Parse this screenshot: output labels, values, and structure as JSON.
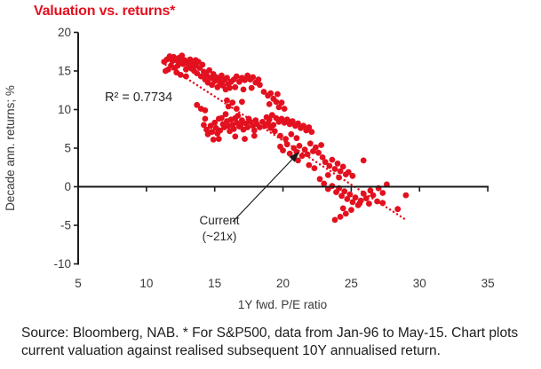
{
  "title": "Valuation vs. returns*",
  "accent_color": "#e3101f",
  "axis_color": "#1a1a1a",
  "source_note": "Source: Bloomberg, NAB. * For S&P500, data from Jan-96 to May-15. Chart plots current valuation against realised subsequent 10Y annualised return.",
  "chart_data": {
    "type": "scatter",
    "title": "Valuation vs. returns*",
    "xlabel": "1Y fwd. P/E ratio",
    "ylabel": "Decade ann. returns; %",
    "xlim": [
      5,
      35
    ],
    "ylim": [
      -10,
      20
    ],
    "x_ticks": [
      5,
      10,
      15,
      20,
      25,
      30,
      35
    ],
    "y_ticks": [
      20,
      15,
      10,
      5,
      0,
      -5,
      -10
    ],
    "grid": false,
    "point_color": "#e3101f",
    "r_squared_label": "R² = 0.7734",
    "annotation": {
      "line1": "Current",
      "line2": "(~21x)",
      "target": [
        21.2,
        4.6
      ]
    },
    "trend_line": {
      "from": [
        11.4,
        15.8
      ],
      "to": [
        29.1,
        -4.4
      ],
      "style": "dotted",
      "color": "#e3101f"
    },
    "points": [
      [
        11.3,
        16.2
      ],
      [
        11.5,
        16.5
      ],
      [
        11.7,
        16.9
      ],
      [
        11.9,
        16.3
      ],
      [
        12.0,
        16.8
      ],
      [
        12.2,
        16.4
      ],
      [
        12.4,
        16.7
      ],
      [
        12.6,
        17.0
      ],
      [
        12.5,
        16.1
      ],
      [
        12.3,
        15.7
      ],
      [
        12.1,
        15.4
      ],
      [
        11.8,
        15.7
      ],
      [
        11.6,
        15.2
      ],
      [
        12.7,
        15.9
      ],
      [
        12.8,
        16.4
      ],
      [
        13.0,
        16.1
      ],
      [
        13.2,
        16.5
      ],
      [
        13.4,
        16.0
      ],
      [
        13.1,
        15.6
      ],
      [
        12.9,
        15.2
      ],
      [
        13.3,
        15.3
      ],
      [
        13.6,
        15.7
      ],
      [
        13.8,
        16.2
      ],
      [
        13.6,
        16.4
      ],
      [
        13.5,
        15.0
      ],
      [
        13.7,
        14.7
      ],
      [
        13.9,
        15.4
      ],
      [
        14.1,
        15.8
      ],
      [
        12.2,
        14.8
      ],
      [
        12.5,
        14.5
      ],
      [
        12.9,
        14.3
      ],
      [
        11.4,
        15.0
      ],
      [
        14.0,
        14.3
      ],
      [
        14.2,
        14.9
      ],
      [
        14.4,
        14.5
      ],
      [
        14.6,
        15.1
      ],
      [
        14.3,
        13.9
      ],
      [
        14.5,
        13.5
      ],
      [
        14.7,
        14.1
      ],
      [
        14.9,
        14.6
      ],
      [
        15.1,
        14.2
      ],
      [
        15.0,
        13.7
      ],
      [
        14.8,
        13.2
      ],
      [
        15.2,
        12.9
      ],
      [
        15.4,
        13.4
      ],
      [
        15.3,
        14.0
      ],
      [
        15.5,
        14.4
      ],
      [
        15.7,
        13.8
      ],
      [
        15.6,
        13.1
      ],
      [
        15.8,
        12.6
      ],
      [
        16.0,
        13.3
      ],
      [
        16.1,
        12.8
      ],
      [
        15.9,
        14.1
      ],
      [
        16.2,
        13.6
      ],
      [
        16.4,
        13.9
      ],
      [
        16.6,
        14.3
      ],
      [
        16.8,
        13.6
      ],
      [
        17.0,
        14.1
      ],
      [
        17.2,
        13.8
      ],
      [
        17.4,
        14.4
      ],
      [
        17.6,
        13.9
      ],
      [
        17.8,
        14.2
      ],
      [
        18.0,
        13.5
      ],
      [
        18.2,
        13.9
      ],
      [
        18.3,
        13.2
      ],
      [
        16.5,
        12.9
      ],
      [
        17.1,
        12.6
      ],
      [
        17.7,
        12.8
      ],
      [
        18.6,
        12.3
      ],
      [
        18.9,
        11.8
      ],
      [
        19.1,
        12.1
      ],
      [
        19.3,
        11.4
      ],
      [
        19.5,
        11.0
      ],
      [
        19.0,
        10.7
      ],
      [
        19.7,
        10.3
      ],
      [
        19.9,
        10.9
      ],
      [
        20.1,
        10.1
      ],
      [
        19.6,
        12.0
      ],
      [
        13.7,
        10.6
      ],
      [
        14.0,
        10.1
      ],
      [
        16.0,
        10.4
      ],
      [
        16.3,
        10.9
      ],
      [
        16.6,
        10.1
      ],
      [
        15.9,
        11.2
      ],
      [
        17.0,
        11.0
      ],
      [
        14.3,
        9.9
      ],
      [
        14.2,
        8.0
      ],
      [
        14.3,
        8.8
      ],
      [
        14.4,
        7.4
      ],
      [
        14.5,
        6.8
      ],
      [
        14.7,
        7.9
      ],
      [
        14.8,
        7.1
      ],
      [
        15.0,
        8.3
      ],
      [
        15.1,
        7.6
      ],
      [
        15.3,
        8.8
      ],
      [
        15.2,
        6.9
      ],
      [
        15.4,
        7.3
      ],
      [
        15.6,
        8.1
      ],
      [
        15.5,
        8.9
      ],
      [
        15.7,
        7.7
      ],
      [
        15.9,
        8.5
      ],
      [
        16.0,
        7.9
      ],
      [
        16.2,
        8.7
      ],
      [
        16.1,
        7.2
      ],
      [
        16.3,
        8.0
      ],
      [
        16.5,
        8.9
      ],
      [
        16.4,
        7.5
      ],
      [
        16.6,
        8.3
      ],
      [
        16.8,
        7.8
      ],
      [
        17.0,
        8.6
      ],
      [
        16.9,
        8.0
      ],
      [
        17.1,
        7.4
      ],
      [
        17.3,
        8.2
      ],
      [
        17.5,
        8.8
      ],
      [
        17.4,
        7.7
      ],
      [
        17.6,
        8.4
      ],
      [
        17.8,
        7.9
      ],
      [
        18.0,
        8.6
      ],
      [
        17.9,
        7.3
      ],
      [
        18.1,
        8.1
      ],
      [
        18.3,
        7.7
      ],
      [
        18.5,
        8.4
      ],
      [
        18.7,
        7.9
      ],
      [
        18.9,
        8.2
      ],
      [
        19.1,
        7.6
      ],
      [
        19.3,
        8.0
      ],
      [
        15.8,
        9.4
      ],
      [
        16.7,
        9.2
      ],
      [
        16.5,
        6.5
      ],
      [
        17.2,
        6.2
      ],
      [
        17.9,
        6.6
      ],
      [
        15.3,
        6.2
      ],
      [
        14.9,
        6.1
      ],
      [
        18.8,
        9.0
      ],
      [
        19.0,
        8.7
      ],
      [
        19.2,
        9.3
      ],
      [
        19.5,
        8.9
      ],
      [
        19.7,
        8.4
      ],
      [
        19.9,
        8.8
      ],
      [
        20.1,
        8.3
      ],
      [
        20.3,
        8.7
      ],
      [
        20.5,
        8.1
      ],
      [
        20.7,
        8.5
      ],
      [
        20.9,
        7.9
      ],
      [
        21.1,
        8.2
      ],
      [
        21.3,
        7.6
      ],
      [
        21.5,
        7.9
      ],
      [
        21.7,
        7.3
      ],
      [
        21.9,
        7.7
      ],
      [
        22.1,
        7.1
      ],
      [
        19.4,
        7.2
      ],
      [
        19.8,
        6.6
      ],
      [
        20.2,
        6.2
      ],
      [
        20.6,
        6.8
      ],
      [
        21.0,
        6.3
      ],
      [
        19.8,
        5.2
      ],
      [
        20.0,
        4.7
      ],
      [
        20.3,
        5.5
      ],
      [
        20.5,
        4.3
      ],
      [
        20.8,
        5.0
      ],
      [
        21.0,
        4.5
      ],
      [
        21.2,
        5.3
      ],
      [
        21.4,
        4.0
      ],
      [
        21.6,
        4.8
      ],
      [
        21.8,
        4.2
      ],
      [
        22.0,
        5.6
      ],
      [
        22.2,
        4.6
      ],
      [
        22.4,
        5.1
      ],
      [
        22.6,
        4.4
      ],
      [
        22.8,
        5.4
      ],
      [
        21.1,
        3.4
      ],
      [
        21.9,
        2.8
      ],
      [
        22.3,
        2.4
      ],
      [
        22.9,
        3.8
      ],
      [
        23.1,
        3.2
      ],
      [
        23.4,
        2.7
      ],
      [
        23.6,
        3.5
      ],
      [
        23.8,
        2.3
      ],
      [
        24.0,
        3.0
      ],
      [
        24.2,
        2.0
      ],
      [
        24.4,
        2.6
      ],
      [
        24.6,
        1.6
      ],
      [
        24.1,
        1.2
      ],
      [
        23.3,
        1.5
      ],
      [
        22.7,
        1.0
      ],
      [
        24.8,
        1.9
      ],
      [
        25.1,
        1.4
      ],
      [
        23.0,
        0.4
      ],
      [
        23.3,
        -0.3
      ],
      [
        23.6,
        0.1
      ],
      [
        23.9,
        -0.7
      ],
      [
        24.1,
        -0.2
      ],
      [
        24.3,
        -1.2
      ],
      [
        24.5,
        -0.6
      ],
      [
        24.7,
        -1.6
      ],
      [
        24.9,
        -1.0
      ],
      [
        25.1,
        -2.0
      ],
      [
        25.3,
        -1.4
      ],
      [
        25.5,
        -2.4
      ],
      [
        25.0,
        -3.0
      ],
      [
        24.6,
        -3.5
      ],
      [
        24.2,
        -3.9
      ],
      [
        23.8,
        -4.3
      ],
      [
        25.7,
        -1.8
      ],
      [
        25.9,
        -0.9
      ],
      [
        26.1,
        -1.5
      ],
      [
        26.4,
        -0.5
      ],
      [
        26.6,
        -1.1
      ],
      [
        27.0,
        -0.2
      ],
      [
        27.3,
        -0.8
      ],
      [
        24.4,
        -2.8
      ],
      [
        26.3,
        -2.2
      ],
      [
        26.9,
        -1.9
      ],
      [
        27.3,
        -2.1
      ],
      [
        25.6,
        -2.2
      ],
      [
        25.9,
        3.4
      ],
      [
        27.6,
        0.3
      ],
      [
        28.4,
        -2.9
      ],
      [
        29.0,
        -1.1
      ]
    ]
  }
}
